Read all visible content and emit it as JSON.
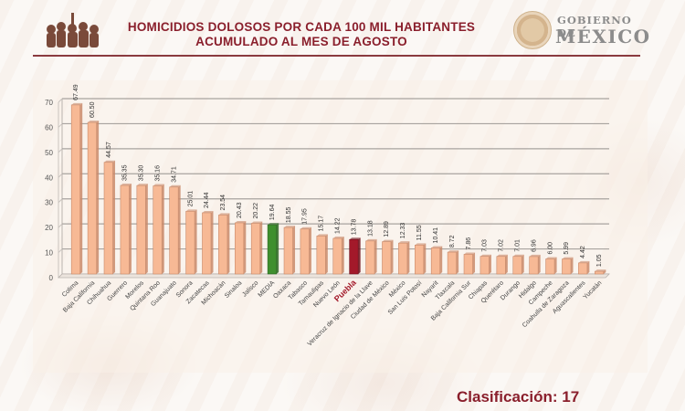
{
  "header": {
    "title_line1": "HOMICIDIOS DOLOSOS POR CADA 100 MIL HABITANTES",
    "title_line2": "ACUMULADO AL MES DE AGOSTO",
    "logo_line1": "GOBIERNO DE",
    "logo_line2": "MÉXICO"
  },
  "footer": {
    "classification": "Clasificación: 17"
  },
  "colors": {
    "bar": "#f7b995",
    "bar_edge": "#c98a6a",
    "media": "#3f8f2e",
    "puebla": "#a3192a",
    "title": "#8a1f2c",
    "grid": "#a8a39f"
  },
  "chart_data": {
    "type": "bar",
    "title": "HOMICIDIOS DOLOSOS POR CADA 100 MIL HABITANTES ACUMULADO AL MES DE AGOSTO",
    "xlabel": "",
    "ylabel": "",
    "ylim": [
      0,
      70
    ],
    "yticks": [
      0,
      10,
      20,
      30,
      40,
      50,
      60,
      70
    ],
    "grid": true,
    "legend": "none",
    "highlight": {
      "MEDIA": "green",
      "Puebla": "red"
    },
    "categories": [
      "Colima",
      "Baja California",
      "Chihuahua",
      "Guerrero",
      "Morelos",
      "Quintana Roo",
      "Guanajuato",
      "Sonora",
      "Zacatecas",
      "Michoacán",
      "Sinaloa",
      "Jalisco",
      "MEDIA",
      "Oaxaca",
      "Tabasco",
      "Tamaulipas",
      "Nuevo León",
      "Puebla",
      "Veracruz de Ignacio de la Llave",
      "Ciudad de México",
      "México",
      "San Luis Potosí",
      "Nayarit",
      "Tlaxcala",
      "Baja California Sur",
      "Chiapas",
      "Querétaro",
      "Durango",
      "Hidalgo",
      "Campeche",
      "Coahuila de Zaragoza",
      "Aguascalientes",
      "Yucatán"
    ],
    "values": [
      67.49,
      60.5,
      44.57,
      35.35,
      35.3,
      35.16,
      34.71,
      25.01,
      24.44,
      23.54,
      20.43,
      20.22,
      19.64,
      18.55,
      17.95,
      15.17,
      14.22,
      13.78,
      13.18,
      12.89,
      12.33,
      11.55,
      10.41,
      8.72,
      7.86,
      7.03,
      7.02,
      7.01,
      6.96,
      6.0,
      5.99,
      4.42,
      1.05
    ],
    "value_labels": [
      "67.49",
      "60.50",
      "44.57",
      "35.35",
      "35.30",
      "35.16",
      "34.71",
      "25.01",
      "24.44",
      "23.54",
      "20.43",
      "20.22",
      "19.64",
      "18.55",
      "17.95",
      "15.17",
      "14.22",
      "13.78",
      "13.18",
      "12.89",
      "12.33",
      "11.55",
      "10.41",
      "8.72",
      "7.86",
      "7.03",
      "7.02",
      "7.01",
      "6.96",
      "6.00",
      "5.99",
      "4.42",
      "1.05"
    ]
  }
}
